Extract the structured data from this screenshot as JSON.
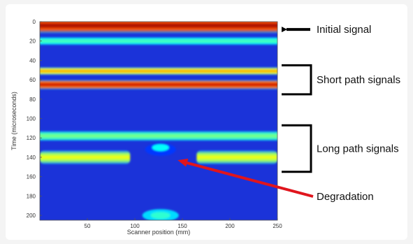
{
  "chart_data": {
    "type": "heatmap",
    "title": "",
    "xlabel": "Scanner position (mm)",
    "ylabel": "Time (microseconds)",
    "xlim": [
      0,
      250
    ],
    "ylim": [
      0,
      205
    ],
    "x_ticks": [
      50,
      100,
      150,
      200,
      250
    ],
    "y_ticks": [
      0,
      20,
      40,
      60,
      80,
      100,
      120,
      140,
      160,
      180,
      200
    ],
    "y_reversed": true,
    "colormap": "jet",
    "bands": [
      {
        "t_center": 4,
        "t_half_width": 8,
        "intensity": 0.97,
        "x_range": [
          0,
          250
        ]
      },
      {
        "t_center": 20,
        "t_half_width": 4,
        "intensity": 0.45,
        "x_range": [
          0,
          250
        ]
      },
      {
        "t_center": 51,
        "t_half_width": 4,
        "intensity": 0.72,
        "x_range": [
          0,
          250
        ]
      },
      {
        "t_center": 65,
        "t_half_width": 5,
        "intensity": 0.93,
        "x_range": [
          0,
          250
        ]
      },
      {
        "t_center": 118,
        "t_half_width": 5,
        "intensity": 0.5,
        "x_range": [
          0,
          250
        ]
      },
      {
        "t_center": 140,
        "t_half_width": 7,
        "intensity": 0.62,
        "x_range": [
          0,
          250
        ],
        "degraded_x_range": [
          95,
          165
        ]
      }
    ],
    "annotations": [
      {
        "label": "Initial signal",
        "t_range": [
          4,
          12
        ],
        "marker": "arrow"
      },
      {
        "label": "Short path signals",
        "t_range": [
          45,
          75
        ],
        "marker": "bracket"
      },
      {
        "label": "Long path signals",
        "t_range": [
          107,
          155
        ],
        "marker": "bracket"
      },
      {
        "label": "Degradation",
        "x": 145,
        "t": 143,
        "marker": "red-arrow"
      }
    ],
    "colors": {
      "arrow": "#000000",
      "degradation_arrow": "#e0151d",
      "bracket": "#000000"
    }
  }
}
